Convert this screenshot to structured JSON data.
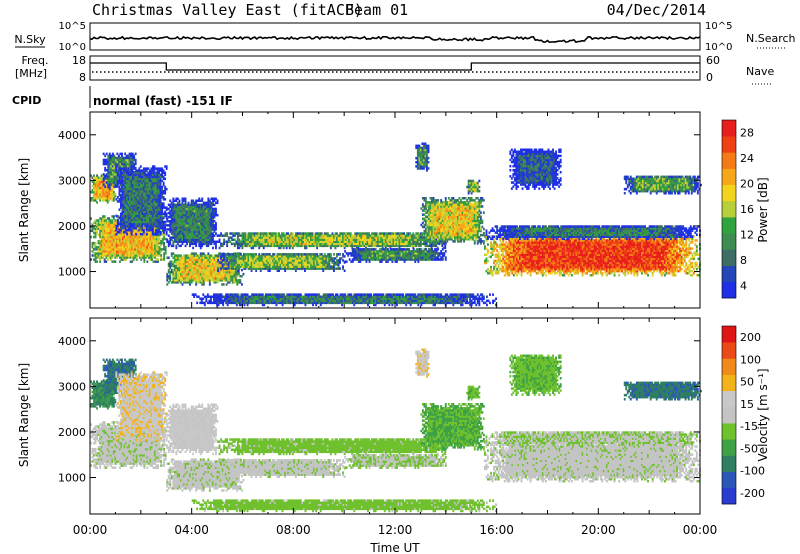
{
  "header": {
    "title": "Christmas Valley East (fitACF)",
    "beam": "Beam 01",
    "date": "04/Dec/2014"
  },
  "top_panels": {
    "nsky_label": "N.Sky",
    "nsky_ticks": [
      "10^5",
      "10^0"
    ],
    "nsearch_label": "N.Search",
    "nsearch_ticks": [
      "10^5",
      "10^0"
    ],
    "freq_label_1": "Freq.",
    "freq_label_2": "[MHz]",
    "freq_ticks": [
      "18",
      "8"
    ],
    "nave_label": "Nave",
    "nave_ticks": [
      "60",
      "0"
    ],
    "cpid_label": "CPID",
    "cpid_text": "normal (fast) -151 IF"
  },
  "colors": {
    "power": [
      "#1f2fe6",
      "#2346b8",
      "#3d6d64",
      "#3d8c52",
      "#2fa33e",
      "#b7cf3a",
      "#f2d41f",
      "#f6a81a",
      "#f47a18",
      "#ee4012",
      "#e81e1e"
    ],
    "velocity": [
      "#2a3bd0",
      "#2c56b8",
      "#2f7f63",
      "#3fa146",
      "#6fc12d",
      "#c4c4c4",
      "#c8c8c8",
      "#f2b21a",
      "#f08a1a",
      "#ea4a16",
      "#e01515"
    ]
  },
  "chart_data": [
    {
      "type": "heatmap",
      "panel": "power",
      "ylabel": "Slant Range [km]",
      "ylim": [
        200,
        4500
      ],
      "yticks": [
        "4000",
        "3000",
        "2000",
        "1000"
      ],
      "xlim": [
        0,
        24
      ],
      "colorbar_label": "Power [dB]",
      "colorbar_ticks": [
        "28",
        "24",
        "20",
        "16",
        "12",
        "8",
        "4"
      ],
      "colorbar_range": [
        0,
        30
      ]
    },
    {
      "type": "heatmap",
      "panel": "velocity",
      "ylabel": "Slant Range [km]",
      "ylim": [
        200,
        4500
      ],
      "yticks": [
        "4000",
        "3000",
        "2000",
        "1000"
      ],
      "xlim": [
        0,
        24
      ],
      "xticks": [
        "00:00",
        "04:00",
        "08:00",
        "12:00",
        "16:00",
        "20:00",
        "00:00"
      ],
      "xlabel": "Time UT",
      "colorbar_label": "Velocity [m s⁻¹]",
      "colorbar_ticks": [
        "200",
        "100",
        "50",
        "15",
        "-15",
        "-50",
        "-100",
        "-200"
      ],
      "colorbar_range": [
        -250,
        250
      ]
    }
  ],
  "echo_regions": [
    {
      "t0": 0.0,
      "t1": 3.0,
      "r0": 1200,
      "r1": 2200,
      "power": 20,
      "velocity": -10
    },
    {
      "t0": 0.0,
      "t1": 1.0,
      "r0": 2500,
      "r1": 3100,
      "power": 20,
      "velocity": -120
    },
    {
      "t0": 0.5,
      "t1": 1.8,
      "r0": 2800,
      "r1": 3600,
      "power": 10,
      "velocity": -150
    },
    {
      "t0": 1.0,
      "t1": 3.0,
      "r0": 1800,
      "r1": 3300,
      "power": 8,
      "velocity": 60
    },
    {
      "t0": 3.0,
      "t1": 6.0,
      "r0": 700,
      "r1": 1400,
      "power": 18,
      "velocity": -10
    },
    {
      "t0": 3.0,
      "t1": 5.0,
      "r0": 1500,
      "r1": 2600,
      "power": 9,
      "velocity": 30
    },
    {
      "t0": 5.0,
      "t1": 10.0,
      "r0": 1000,
      "r1": 1400,
      "power": 14,
      "velocity": -10
    },
    {
      "t0": 5.0,
      "t1": 14.0,
      "r0": 1500,
      "r1": 1850,
      "power": 15,
      "velocity": -40
    },
    {
      "t0": 10.0,
      "t1": 14.0,
      "r0": 1200,
      "r1": 1500,
      "power": 10,
      "velocity": -20
    },
    {
      "t0": 4.0,
      "t1": 16.0,
      "r0": 250,
      "r1": 500,
      "power": 8,
      "velocity": -40
    },
    {
      "t0": 13.0,
      "t1": 15.5,
      "r0": 1600,
      "r1": 2600,
      "power": 18,
      "velocity": -70
    },
    {
      "t0": 12.8,
      "t1": 13.3,
      "r0": 3200,
      "r1": 3800,
      "power": 10,
      "velocity": 60
    },
    {
      "t0": 14.8,
      "t1": 15.3,
      "r0": 2700,
      "r1": 3000,
      "power": 14,
      "velocity": -60
    },
    {
      "t0": 15.5,
      "t1": 24.0,
      "r0": 900,
      "r1": 1800,
      "power": 27,
      "velocity": -8
    },
    {
      "t0": 15.5,
      "t1": 24.0,
      "r0": 1700,
      "r1": 2000,
      "power": 8,
      "velocity": -20
    },
    {
      "t0": 16.5,
      "t1": 18.5,
      "r0": 2800,
      "r1": 3700,
      "power": 6,
      "velocity": -60
    },
    {
      "t0": 21.0,
      "t1": 24.0,
      "r0": 2700,
      "r1": 3100,
      "power": 12,
      "velocity": -150
    }
  ]
}
